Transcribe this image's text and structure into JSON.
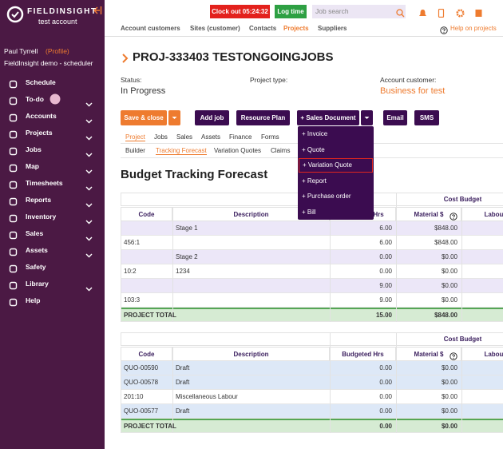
{
  "sidebar": {
    "brand": "FIELDINSIGHT",
    "account": "test account",
    "user": "Paul Tyrrell",
    "profile": "(Profile)",
    "company": "FieldInsight demo - scheduler",
    "menu": [
      {
        "label": "Schedule",
        "submenu": false
      },
      {
        "label": "To-do",
        "submenu": true
      },
      {
        "label": "Accounts",
        "submenu": true
      },
      {
        "label": "Projects",
        "submenu": true
      },
      {
        "label": "Jobs",
        "submenu": true
      },
      {
        "label": "Map",
        "submenu": true
      },
      {
        "label": "Timesheets",
        "submenu": true
      },
      {
        "label": "Reports",
        "submenu": true
      },
      {
        "label": "Inventory",
        "submenu": true
      },
      {
        "label": "Sales",
        "submenu": true
      },
      {
        "label": "Assets",
        "submenu": true
      },
      {
        "label": "Safety",
        "submenu": false
      },
      {
        "label": "Library",
        "submenu": true
      },
      {
        "label": "Help",
        "submenu": false
      }
    ]
  },
  "topbar": {
    "clock_out": "Clock out 05:24:32",
    "log_time": "Log time",
    "search_placeholder": "Job search"
  },
  "nav": {
    "links": [
      "Account customers",
      "Sites (customer)",
      "Contacts",
      "Projects",
      "Suppliers"
    ],
    "active": 3,
    "help": "Help on projects"
  },
  "project": {
    "title": "PROJ-333403 TESTONGOINGJOBS",
    "fields": [
      {
        "label": "Status:",
        "value": "In Progress"
      },
      {
        "label": "Project type:",
        "value": null
      },
      {
        "label": "Account customer:",
        "value": "Business for test"
      }
    ]
  },
  "buttons": [
    "Save & close",
    "Add job",
    "Resource Plan",
    "+ Sales Document",
    "Email",
    "SMS"
  ],
  "tabs": {
    "items": [
      "Project",
      "Jobs",
      "Sales",
      "Assets",
      "Finance",
      "Forms"
    ],
    "active": 0
  },
  "subtabs": {
    "items": [
      "Builder",
      "Tracking Forecast",
      "Variation Quotes",
      "Claims"
    ],
    "active": 1
  },
  "dropdown": {
    "items": [
      "+ Invoice",
      "+ Quote",
      "+ Variation Quote",
      "+ Report",
      "+ Purchase order",
      "+ Bill"
    ],
    "highlighted": 2
  },
  "section_title": "Budget Tracking Forecast",
  "tables": [
    {
      "group_header": "Cost Budget",
      "columns": [
        "Code",
        "Description",
        "Budgeted Hrs",
        "Material $",
        "Labour"
      ],
      "rows": [
        {
          "color": "#ece7f8",
          "cells": [
            null,
            "Stage 1",
            "6.00",
            "$848.00"
          ]
        },
        {
          "color": "#ffffff",
          "cells": [
            "456:1",
            null,
            "6.00",
            "$848.00"
          ]
        },
        {
          "color": "#ece7f8",
          "cells": [
            null,
            "Stage 2",
            "0.00",
            "$0.00"
          ]
        },
        {
          "color": "#ffffff",
          "cells": [
            "10:2",
            "1234",
            "0.00",
            "$0.00"
          ]
        },
        {
          "color": "#ece7f8",
          "cells": [
            null,
            null,
            "9.00",
            "$0.00"
          ]
        },
        {
          "color": "#ffffff",
          "cells": [
            "103:3",
            null,
            "9.00",
            "$0.00"
          ]
        },
        {
          "color": "#d6ebd3",
          "cells": [
            "PROJECT TOTAL",
            null,
            "15.00",
            "$848.00"
          ]
        }
      ]
    },
    {
      "group_header": "Cost Budget",
      "columns": [
        "Code",
        "Description",
        "Budgeted Hrs",
        "Material $",
        "Labour"
      ],
      "rows": [
        {
          "color": "#dde8f7",
          "cells": [
            "QUO-00590",
            "Draft",
            "0.00",
            "$0.00"
          ]
        },
        {
          "color": "#dde8f7",
          "cells": [
            "QUO-00578",
            "Draft",
            "0.00",
            "$0.00"
          ]
        },
        {
          "color": "#ffffff",
          "cells": [
            "201:10",
            "Miscellaneous Labour",
            "0.00",
            "$0.00"
          ]
        },
        {
          "color": "#dde8f7",
          "cells": [
            "QUO-00577",
            "Draft",
            "0.00",
            "$0.00"
          ]
        },
        {
          "color": "#d6ebd3",
          "cells": [
            "PROJECT TOTAL",
            null,
            "0.00",
            "$0.00"
          ]
        }
      ]
    }
  ]
}
